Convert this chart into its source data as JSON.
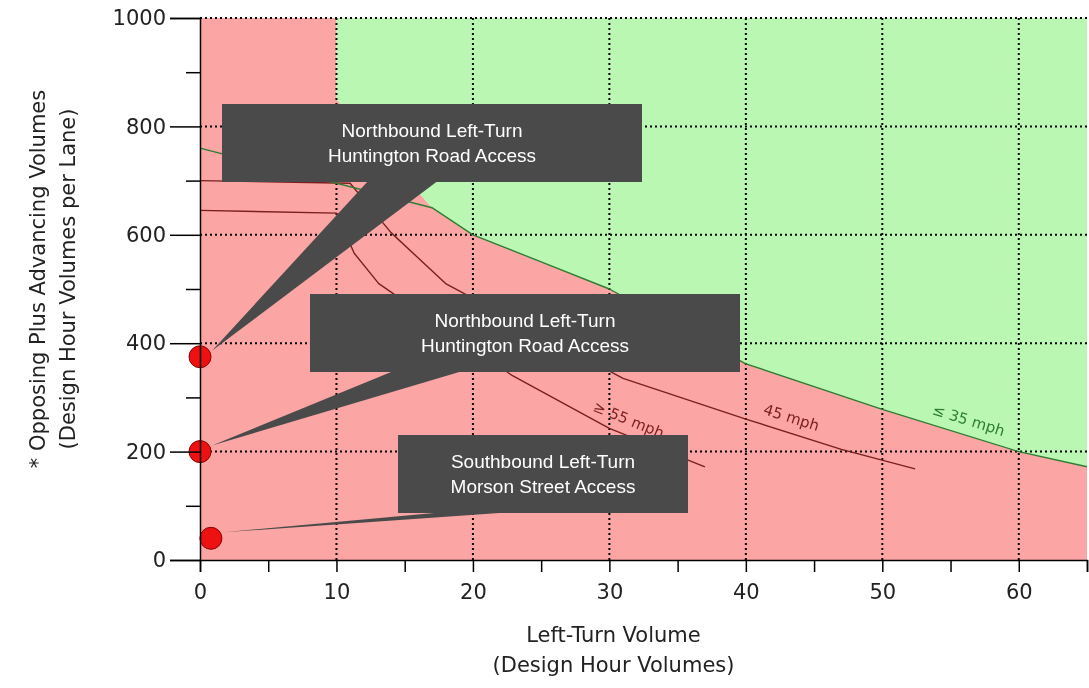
{
  "chart_data": {
    "type": "area",
    "stacked": true,
    "xlabel": "Left-Turn Volume\n(Design Hour Volumes)",
    "ylabel": "* Opposing Plus Advancing Volumes\n(Design Hour Volumes per Lane)",
    "x": [
      0,
      10,
      10,
      17,
      20,
      25,
      30,
      40,
      50,
      60,
      65
    ],
    "xlim": [
      0,
      65
    ],
    "ylim": [
      0,
      1000
    ],
    "xticks": [
      0,
      {
        "value": 5,
        "label": null
      },
      10,
      {
        "value": 15,
        "label": null
      },
      20,
      {
        "value": 25,
        "label": null
      },
      30,
      {
        "value": 35,
        "label": null
      },
      40,
      {
        "value": 45,
        "label": null
      },
      50,
      {
        "value": 55,
        "label": null
      },
      60,
      {
        "value": 65,
        "label": null
      }
    ],
    "yticks": [
      0,
      {
        "value": 100,
        "label": null
      },
      200,
      {
        "value": 300,
        "label": null
      },
      400,
      {
        "value": 500,
        "label": null
      },
      600,
      {
        "value": 700,
        "label": null
      },
      800,
      {
        "value": 900,
        "label": null
      },
      1000
    ],
    "grid": true,
    "legend": false,
    "series": [
      {
        "color": "#fca5a5",
        "values": [
          1000,
          1000,
          850,
          650,
          600,
          550,
          500,
          362,
          278,
          200,
          172
        ]
      },
      {
        "color": "#b9f7b3",
        "values": [
          0,
          0,
          150,
          350,
          400,
          450,
          500,
          638,
          722,
          800,
          828
        ]
      },
      {
        "type": "line",
        "name": "≥ 55 mph",
        "color": "#7a1f1f",
        "x": [
          0,
          10,
          11.3,
          13.1,
          22.9,
          30,
          37
        ],
        "values": [
          645,
          640,
          566,
          510,
          340,
          243,
          172
        ]
      },
      {
        "type": "line",
        "name": "45 mph",
        "color": "#7a1f1f",
        "x": [
          0,
          11,
          14,
          18,
          31,
          40,
          47,
          52.4
        ],
        "values": [
          700,
          695,
          604,
          510,
          335,
          260,
          204,
          168
        ]
      },
      {
        "type": "line",
        "name": "≤ 35 mph",
        "color": "#2e7d32",
        "x": [
          0,
          17,
          20,
          25,
          30,
          40,
          50,
          60,
          65
        ],
        "values": [
          760,
          650,
          600,
          550,
          500,
          362,
          278,
          200,
          172
        ]
      },
      {
        "type": "scatter",
        "color": "#ee1111",
        "marker": "circle",
        "x": [
          0,
          0,
          0.8
        ],
        "values": [
          375,
          200,
          40
        ]
      }
    ],
    "annotations": [
      "Northbound Left-Turn\nHuntington Road Access",
      "Northbound Left-Turn\nHuntington Road Access",
      "Southbound Left-Turn\nMorson Street Access"
    ]
  }
}
